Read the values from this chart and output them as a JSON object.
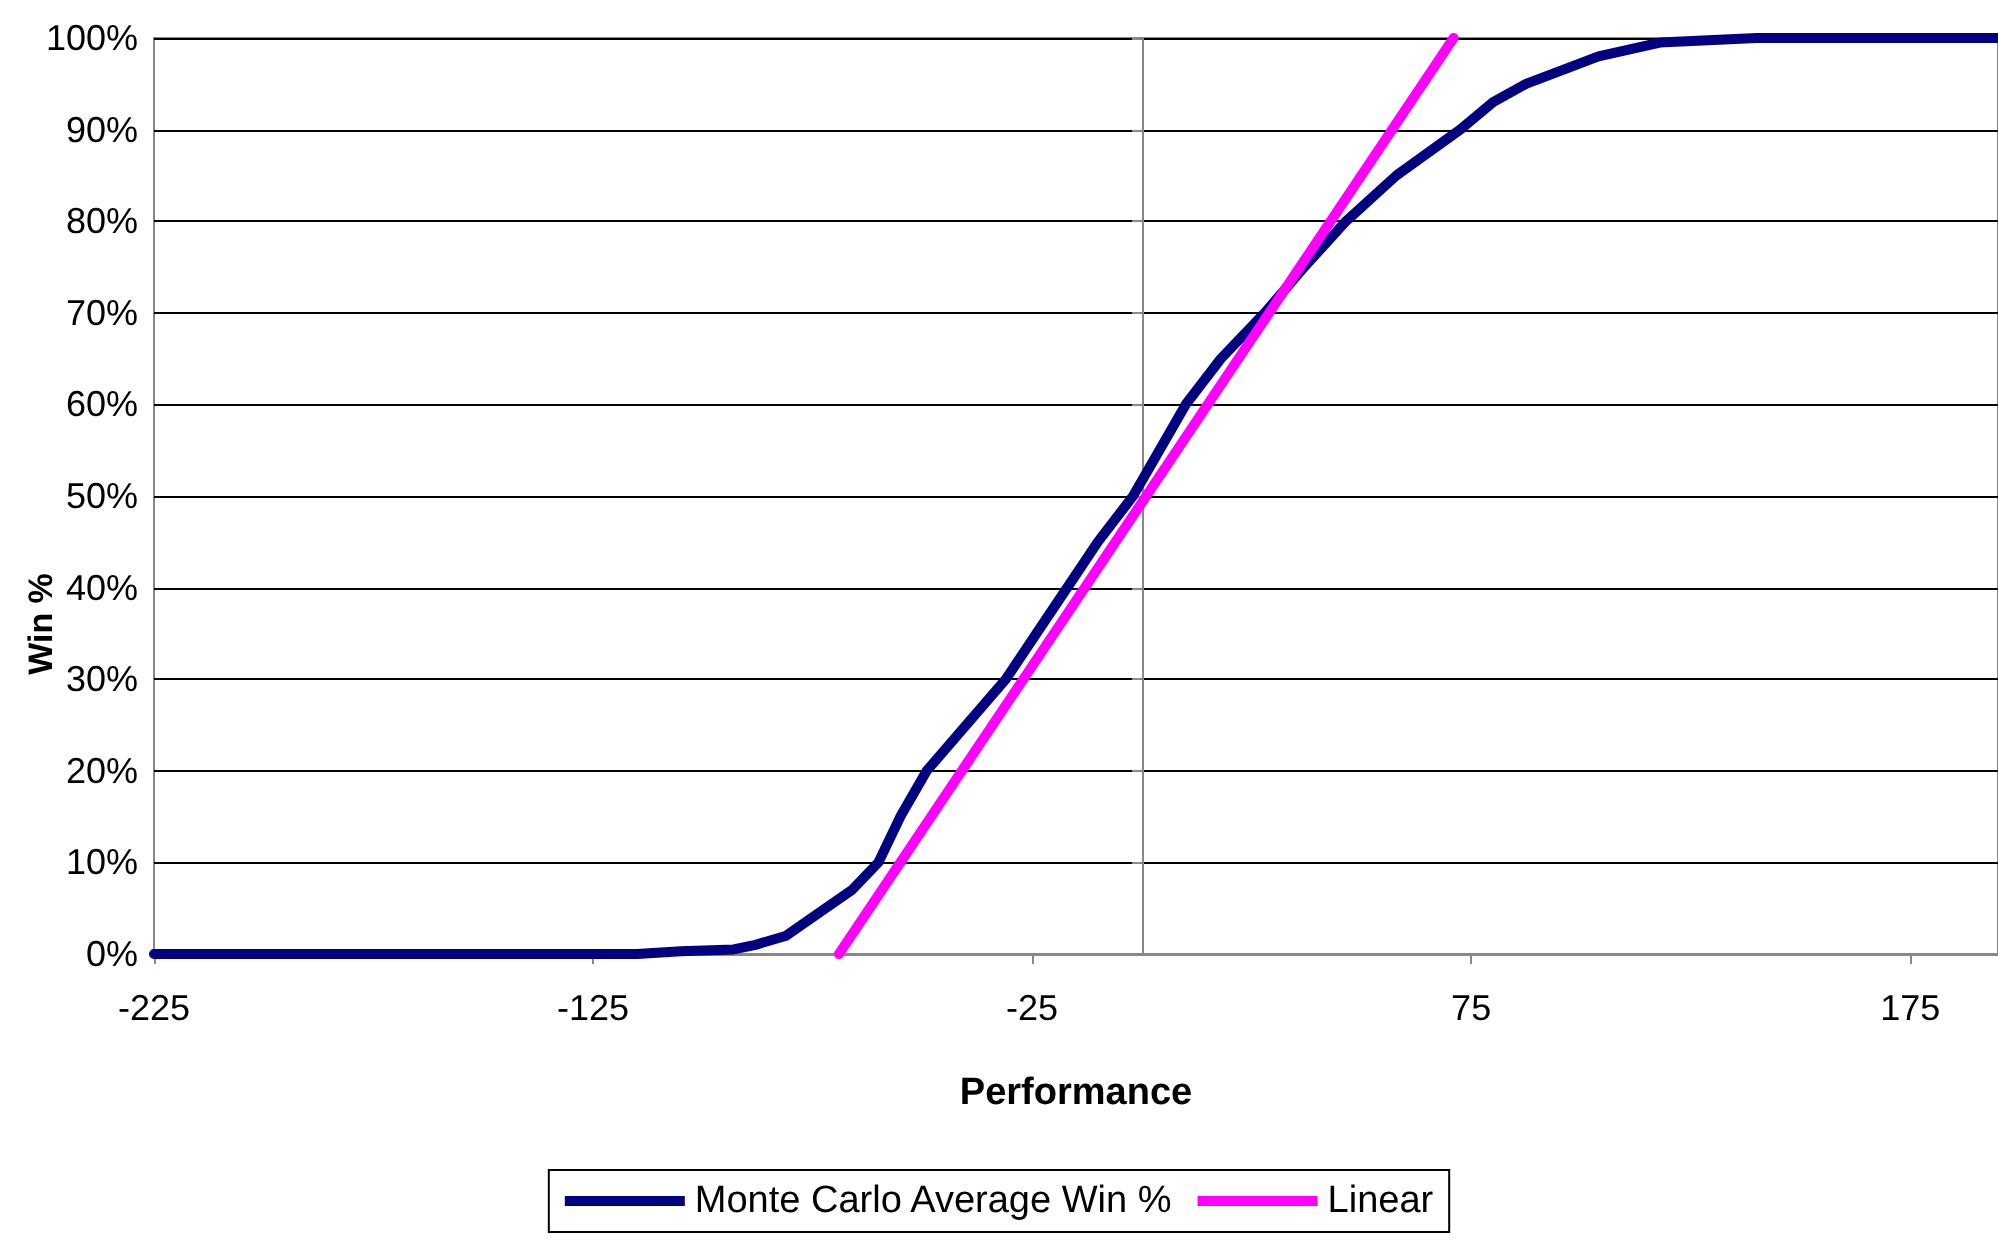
{
  "chart_data": {
    "type": "line",
    "xlabel": "Performance",
    "ylabel": "Win %",
    "xlim": [
      -225,
      195
    ],
    "xticks": [
      -225,
      -125,
      -25,
      75,
      175
    ],
    "ylim": [
      0,
      100
    ],
    "yticks": [
      {
        "value": 0,
        "label": "0%"
      },
      {
        "value": 10,
        "label": "10%"
      },
      {
        "value": 20,
        "label": "20%"
      },
      {
        "value": 30,
        "label": "30%"
      },
      {
        "value": 40,
        "label": "40%"
      },
      {
        "value": 50,
        "label": "50%"
      },
      {
        "value": 60,
        "label": "60%"
      },
      {
        "value": 70,
        "label": "70%"
      },
      {
        "value": 80,
        "label": "80%"
      },
      {
        "value": 90,
        "label": "90%"
      },
      {
        "value": 100,
        "label": "100%"
      }
    ],
    "grid": "y",
    "legend": "bottom",
    "marker": "none",
    "line_style": "solid",
    "series": [
      {
        "name": "Monte Carlo Average Win %",
        "color": "#000080",
        "x": [
          -225,
          -115,
          -105,
          -93,
          -88,
          -81,
          -72,
          -66,
          -60,
          -55,
          -49,
          -40,
          -31,
          -24,
          -17,
          -10,
          -2,
          4,
          10,
          18,
          28,
          37,
          46.5,
          58,
          72.5,
          80,
          87.5,
          104,
          118,
          140,
          195
        ],
        "values": [
          0,
          0,
          0.3,
          0.5,
          1,
          2,
          5,
          7,
          10,
          15,
          20,
          25,
          30,
          35,
          40,
          45,
          50,
          55,
          60,
          65,
          70,
          75,
          80,
          85,
          90,
          93,
          95,
          98,
          99.5,
          100,
          100
        ]
      },
      {
        "name": "Linear",
        "color": "#ff00ff",
        "x": [
          -69,
          71
        ],
        "values": [
          0,
          100
        ]
      }
    ]
  }
}
